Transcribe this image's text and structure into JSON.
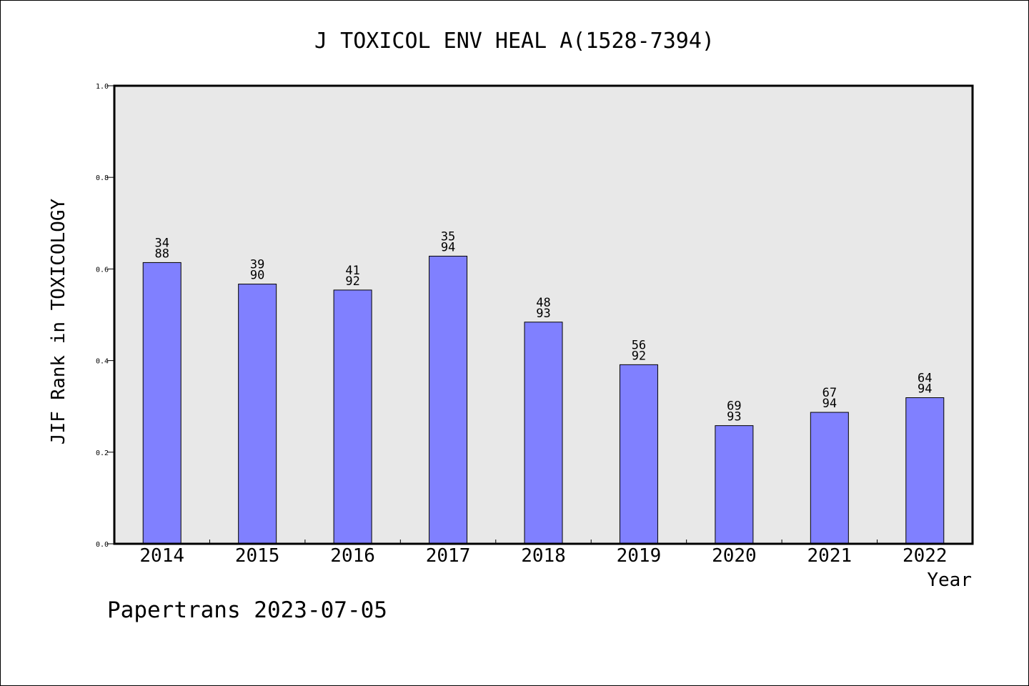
{
  "chart_data": {
    "type": "bar",
    "title": "J TOXICOL ENV HEAL A(1528-7394)",
    "xlabel": "Year",
    "ylabel": "JIF Rank in TOXICOLOGY",
    "ylim": [
      0,
      1.0
    ],
    "yticks": [
      "0.0",
      "0.2",
      "0.4",
      "0.6",
      "0.8",
      "1.0"
    ],
    "categories": [
      "2014",
      "2015",
      "2016",
      "2017",
      "2018",
      "2019",
      "2020",
      "2021",
      "2022"
    ],
    "values": [
      0.614,
      0.567,
      0.554,
      0.628,
      0.484,
      0.391,
      0.258,
      0.287,
      0.319
    ],
    "rank": [
      "34",
      "39",
      "41",
      "35",
      "48",
      "56",
      "69",
      "67",
      "64"
    ],
    "total": [
      "88",
      "90",
      "92",
      "94",
      "93",
      "92",
      "93",
      "94",
      "94"
    ],
    "grid": false,
    "bar_color": "#8080ff",
    "plot_background": "#e8e8e8"
  },
  "footer": "Papertrans 2023-07-05"
}
